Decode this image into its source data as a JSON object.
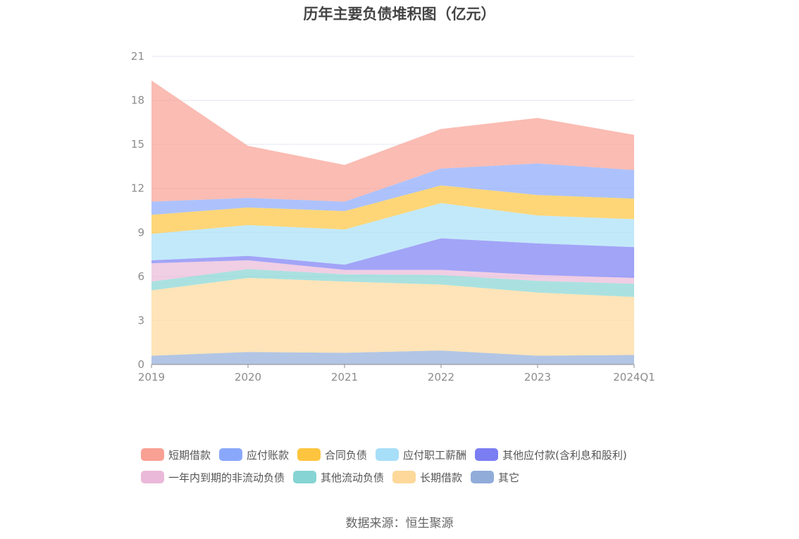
{
  "title": "历年主要负债堆积图（亿元）",
  "source": "数据来源：恒生聚源",
  "chart_data": {
    "type": "area",
    "stacked": true,
    "categories": [
      "2019",
      "2020",
      "2021",
      "2022",
      "2023",
      "2024Q1"
    ],
    "y_ticks": [
      "0",
      "3",
      "6",
      "9",
      "12",
      "15",
      "18",
      "21"
    ],
    "ylim": [
      0,
      21
    ],
    "grid": true,
    "legend_position": "bottom",
    "series": [
      {
        "name": "其它",
        "color": "#91acd9",
        "values": [
          0.6,
          0.85,
          0.8,
          0.95,
          0.6,
          0.65
        ]
      },
      {
        "name": "长期借款",
        "color": "#fdd89a",
        "values": [
          4.45,
          5.05,
          4.85,
          4.5,
          4.3,
          3.95
        ]
      },
      {
        "name": "其他流动负债",
        "color": "#86d4d3",
        "values": [
          0.6,
          0.6,
          0.5,
          0.65,
          0.8,
          0.9
        ]
      },
      {
        "name": "一年内到期的非流动负债",
        "color": "#eab9d9",
        "values": [
          1.25,
          0.6,
          0.3,
          0.35,
          0.4,
          0.4
        ]
      },
      {
        "name": "其他应付款(含利息和股利)",
        "color": "#7b7ef3",
        "values": [
          0.2,
          0.3,
          0.35,
          2.15,
          2.15,
          2.1
        ]
      },
      {
        "name": "应付职工薪酬",
        "color": "#a8dff8",
        "values": [
          1.8,
          2.1,
          2.4,
          2.4,
          1.9,
          1.9
        ]
      },
      {
        "name": "合同负债",
        "color": "#fdc53f",
        "values": [
          1.3,
          1.2,
          1.25,
          1.2,
          1.4,
          1.4
        ]
      },
      {
        "name": "应付账款",
        "color": "#8aa8fb",
        "values": [
          0.9,
          0.65,
          0.65,
          1.15,
          2.15,
          1.95
        ]
      },
      {
        "name": "短期借款",
        "color": "#f8a093",
        "values": [
          8.25,
          3.55,
          2.5,
          2.7,
          3.1,
          2.4
        ]
      }
    ]
  },
  "legend_rows": [
    [
      0,
      1,
      2,
      3,
      4
    ],
    [
      5,
      6,
      7,
      8
    ]
  ],
  "legend_order": [
    "短期借款",
    "应付账款",
    "合同负债",
    "应付职工薪酬",
    "其他应付款(含利息和股利)",
    "一年内到期的非流动负债",
    "其他流动负债",
    "长期借款",
    "其它"
  ]
}
